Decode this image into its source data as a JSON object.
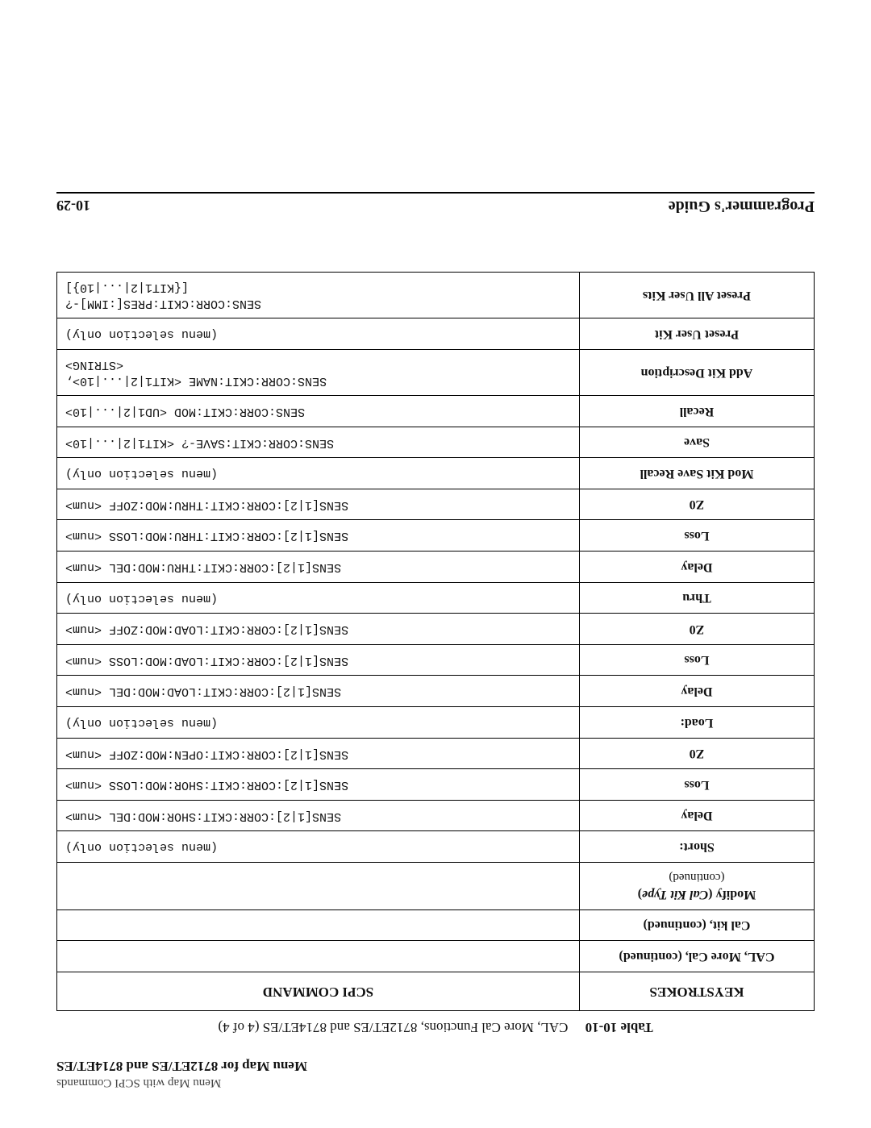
{
  "running_head_small": "Menu Map with SCPI Commands",
  "running_head_bold": "Menu Map for 8712ET/ES and 8714ET/ES",
  "caption_label": "Table 10-10",
  "caption_text": "CAL, More Cal Functions, 8712ET/ES and 8714ET/ES (4 of 4)",
  "head_left": "KEYSTROKES",
  "head_right": "SCPI COMMAND",
  "rows": [
    {
      "k": "CAL, More Cal,  (continued)",
      "k_class": "",
      "cmd": ""
    },
    {
      "k": "Cal kit, (continued)",
      "k_class": "",
      "cmd": ""
    },
    {
      "k_html": "Modify (<i>Cal Kit Type</i>)<span class=\"sub\">(continued)</span>",
      "k_class": "",
      "cmd": ""
    },
    {
      "k": "Short:",
      "k_class": "",
      "cmd": "(menu selection only)"
    },
    {
      "k": "Delay",
      "k_class": "",
      "cmd": "SENS[1|2]:CORR:CKIT:SHOR:MOD:DEL <num>"
    },
    {
      "k": "Loss",
      "k_class": "",
      "cmd": "SENS[1|2]:CORR:CKIT:SHOR:MOD:LOSS <num>"
    },
    {
      "k": "Z0",
      "k_class": "",
      "cmd": "SENS[1|2]:CORR:CKIT:OPEN:MOD:ZOFF <num>"
    },
    {
      "k": "Load:",
      "k_class": "",
      "cmd": "(menu selection only)"
    },
    {
      "k": "Delay",
      "k_class": "",
      "cmd": "SENS[1|2]:CORR:CKIT:LOAD:MOD:DEL <num>"
    },
    {
      "k": "Loss",
      "k_class": "",
      "cmd": "SENS[1|2]:CORR:CKIT:LOAD:MOD:LOSS <num>"
    },
    {
      "k": "Z0",
      "k_class": "",
      "cmd": "SENS[1|2]:CORR:CKIT:LOAD:MOD:ZOFF <num>"
    },
    {
      "k": "Thru",
      "k_class": "",
      "cmd": "(menu selection only)"
    },
    {
      "k": "Delay",
      "k_class": "",
      "cmd": "SENS[1|2]:CORR:CKIT:THRU:MOD:DEL <num>"
    },
    {
      "k": "Loss",
      "k_class": "",
      "cmd": "SENS[1|2]:CORR:CKIT:THRU:MOD:LOSS <num>"
    },
    {
      "k": "Z0",
      "k_class": "",
      "cmd": "SENS[1|2]:CORR:CKIT:THRU:MOD:ZOFF <num>"
    },
    {
      "k": "Mod Kit Save Recall",
      "k_class": "",
      "cmd": "(menu selection only)"
    },
    {
      "k": "Save",
      "k_class": "",
      "cmd": "SENS:CORR:CKIT:SAVE-? <KIT1|2|...|10>"
    },
    {
      "k": "Recall",
      "k_class": "",
      "cmd": "SENS:CORR:CKIT:MOD <UD1|2|...|10>"
    },
    {
      "k": "Add Kit Description",
      "k_class": "",
      "cmd": "SENS:CORR:CKIT:NAME <KIT1|2|...|10>,\n<STRING>"
    },
    {
      "k": "Preset User Kit",
      "k_class": "",
      "cmd": "(menu selection only)"
    },
    {
      "k": "Preset All User Kits",
      "k_class": "",
      "cmd": "SENS:CORR:CKIT:PRES[:IMM]-?\n[{KIT1|2|...|10}]"
    }
  ],
  "footer_title": "Programmer's Guide",
  "footer_page": "10-29"
}
